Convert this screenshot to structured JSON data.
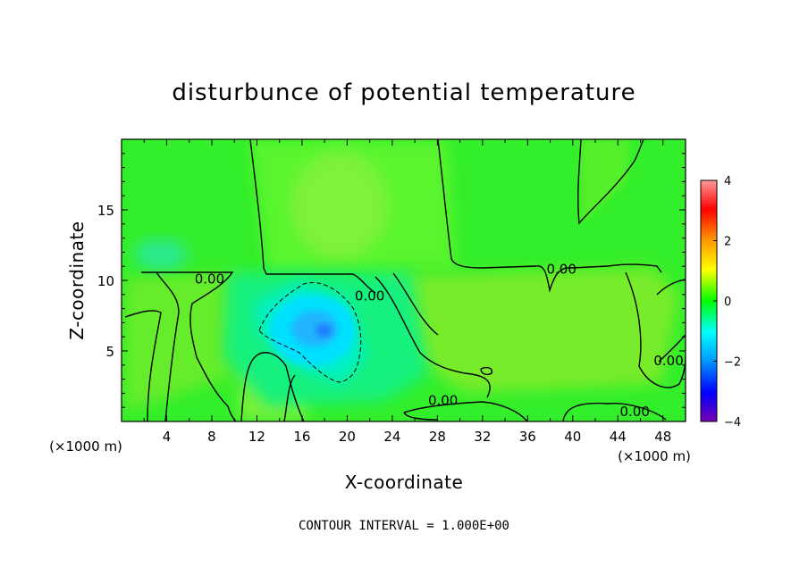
{
  "chart_data": {
    "type": "heatmap",
    "title": "disturbunce of potential temperature",
    "xlabel": "X-coordinate",
    "ylabel": "Z-coordinate",
    "x_unit": "(×1000 m)",
    "z_unit": "(×1000 m)",
    "xlim": [
      0,
      50
    ],
    "ylim": [
      0,
      20
    ],
    "x_ticks": [
      4,
      8,
      12,
      16,
      20,
      24,
      28,
      32,
      36,
      40,
      44,
      48
    ],
    "y_ticks": [
      5,
      10,
      15
    ],
    "colorbar": {
      "range": [
        -4,
        4
      ],
      "ticks": [
        -4,
        -2,
        0,
        2,
        4
      ],
      "colors": [
        "#7a00b4",
        "#0000ff",
        "#0096ff",
        "#00ffff",
        "#00ff00",
        "#ffff00",
        "#ff9900",
        "#ff0000",
        "#ff9a9a"
      ]
    },
    "contour_labels": [
      {
        "text": "0.00",
        "x": 7.8,
        "z": 10.1
      },
      {
        "text": "0.00",
        "x": 22.0,
        "z": 8.9
      },
      {
        "text": "0.00",
        "x": 28.5,
        "z": 1.5
      },
      {
        "text": "0.00",
        "x": 39.0,
        "z": 10.8
      },
      {
        "text": "0.00",
        "x": 45.5,
        "z": 0.7
      },
      {
        "text": "0.00",
        "x": 48.5,
        "z": 4.3
      }
    ],
    "contour_interval_text": "CONTOUR INTERVAL = 1.000E+00"
  }
}
